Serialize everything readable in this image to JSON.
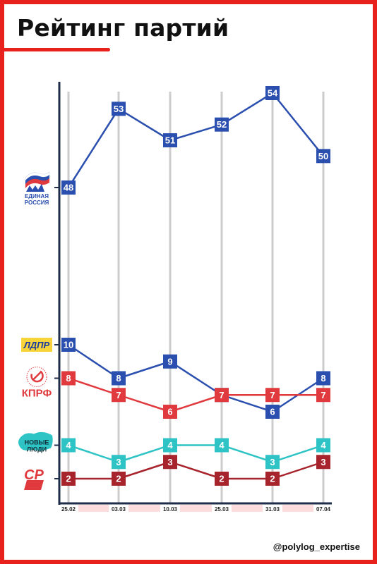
{
  "header": {
    "title": "Рейтинг партий"
  },
  "footer": {
    "handle": "@polylog_expertise"
  },
  "colors": {
    "frame": "#e8211c",
    "axis": "#1f2d4a",
    "gridline": "#cccccc",
    "date_band": "#fcdcdc"
  },
  "chart_data": {
    "type": "line",
    "title": "Рейтинг партий",
    "categories": [
      "25.02",
      "03.03",
      "10.03",
      "25.03",
      "31.03",
      "07.04"
    ],
    "grid": "vertical",
    "legend": "left, party logos",
    "series": [
      {
        "name": "ЕДИНАЯ РОССИЯ",
        "logo_label": [
          "ЕДИНАЯ",
          "РОССИЯ"
        ],
        "logo_icon": "bear-flag-icon",
        "color": "#2b4fae",
        "values": [
          48,
          53,
          51,
          52,
          54,
          50
        ]
      },
      {
        "name": "ЛДПР",
        "logo_label": [
          "ЛДПР"
        ],
        "logo_icon": "ldpr-badge",
        "color": "#2b4fae",
        "values": [
          10,
          8,
          9,
          7,
          6,
          8
        ]
      },
      {
        "name": "КПРФ",
        "logo_label": [
          "КПРФ"
        ],
        "logo_icon": "hammer-sickle-icon",
        "color": "#e03a3e",
        "values": [
          8,
          7,
          6,
          7,
          7,
          7
        ]
      },
      {
        "name": "НОВЫЕ ЛЮДИ",
        "logo_label": [
          "НОВЫЕ",
          "ЛЮДИ"
        ],
        "logo_icon": "splash-icon",
        "color": "#2ec4c6",
        "values": [
          4,
          3,
          4,
          4,
          3,
          4
        ]
      },
      {
        "name": "СР",
        "logo_label": [
          "СР"
        ],
        "logo_icon": "sr-logo-icon",
        "color": "#a8242c",
        "values": [
          2,
          2,
          3,
          2,
          2,
          3
        ]
      }
    ]
  }
}
